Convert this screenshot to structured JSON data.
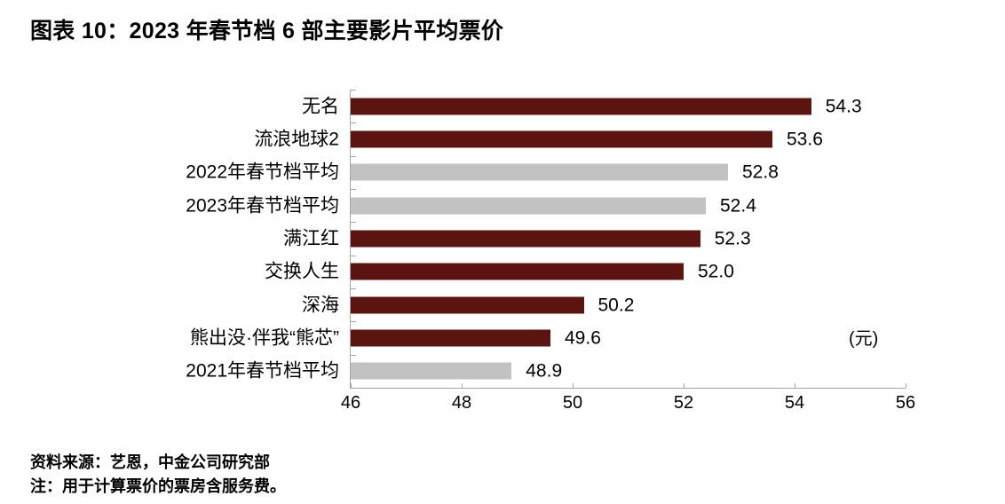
{
  "header": {
    "title": "图表 10：2023 年春节档 6 部主要影片平均票价"
  },
  "chart_data": {
    "type": "bar",
    "orientation": "horizontal",
    "title": "图表 10：2023 年春节档 6 部主要影片平均票价",
    "unit_label": "(元)",
    "xlabel": "",
    "ylabel": "",
    "xlim": [
      46,
      56
    ],
    "x_ticks": [
      "46",
      "48",
      "50",
      "52",
      "54",
      "56"
    ],
    "grid": false,
    "legend": "none",
    "categories": [
      "无名",
      "流浪地球2",
      "2022年春节档平均",
      "2023年春节档平均",
      "满江红",
      "交换人生",
      "深海",
      "熊出没·伴我“熊芯”",
      "2021年春节档平均"
    ],
    "values": [
      54.3,
      53.6,
      52.8,
      52.4,
      52.3,
      52.0,
      50.2,
      49.6,
      48.9
    ],
    "value_labels": [
      "54.3",
      "53.6",
      "52.8",
      "52.4",
      "52.3",
      "52.0",
      "50.2",
      "49.6",
      "48.9"
    ],
    "bar_styles": [
      "movie",
      "movie",
      "average",
      "average",
      "movie",
      "movie",
      "movie",
      "movie",
      "average"
    ],
    "colors": {
      "movie": "#5C1410",
      "average": "#C2C2C2",
      "axis": "#A6A6A6",
      "text": "#000000"
    }
  },
  "footer": {
    "source": "资料来源：艺恩，中金公司研究部",
    "note": "注：用于计算票价的票房含服务费。"
  }
}
